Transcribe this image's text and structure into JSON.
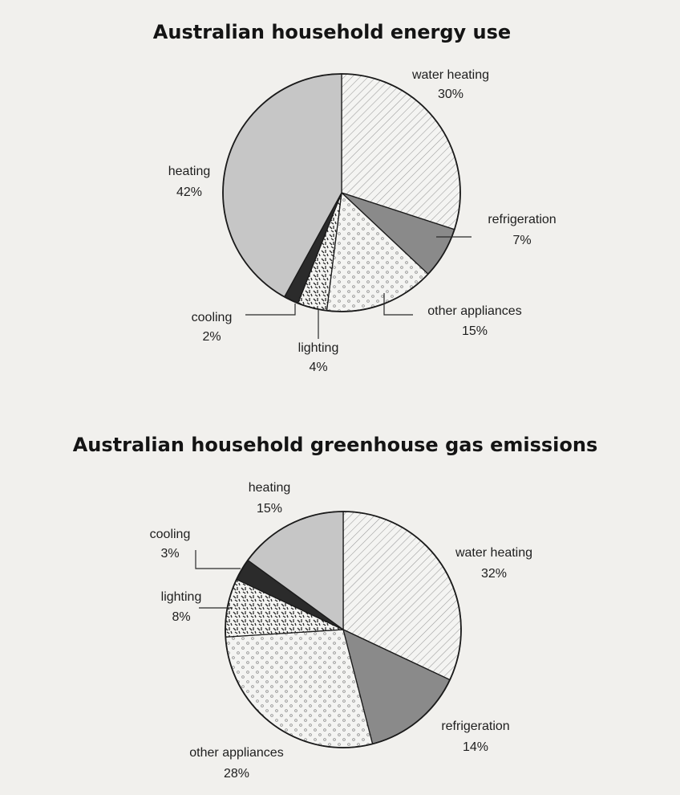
{
  "chart_data": [
    {
      "type": "pie",
      "title": "Australian household energy use",
      "slices": [
        {
          "label": "water heating",
          "value": 30,
          "value_label": "30%",
          "pattern": "hatch"
        },
        {
          "label": "refrigeration",
          "value": 7,
          "value_label": "7%",
          "pattern": "dark-grey"
        },
        {
          "label": "other appliances",
          "value": 15,
          "value_label": "15%",
          "pattern": "dots"
        },
        {
          "label": "lighting",
          "value": 4,
          "value_label": "4%",
          "pattern": "dashes"
        },
        {
          "label": "cooling",
          "value": 2,
          "value_label": "2%",
          "pattern": "black"
        },
        {
          "label": "heating",
          "value": 42,
          "value_label": "42%",
          "pattern": "light-grey"
        }
      ]
    },
    {
      "type": "pie",
      "title": "Australian household greenhouse gas emissions",
      "slices": [
        {
          "label": "water heating",
          "value": 32,
          "value_label": "32%",
          "pattern": "hatch"
        },
        {
          "label": "refrigeration",
          "value": 14,
          "value_label": "14%",
          "pattern": "dark-grey"
        },
        {
          "label": "other appliances",
          "value": 28,
          "value_label": "28%",
          "pattern": "dots"
        },
        {
          "label": "lighting",
          "value": 8,
          "value_label": "8%",
          "pattern": "dashes"
        },
        {
          "label": "cooling",
          "value": 3,
          "value_label": "3%",
          "pattern": "black"
        },
        {
          "label": "heating",
          "value": 15,
          "value_label": "15%",
          "pattern": "light-grey"
        }
      ]
    }
  ],
  "colors": {
    "background": "#f1f0ed",
    "light_grey": "#c6c6c6",
    "dark_grey": "#8a8a8a",
    "black": "#2b2b2b",
    "ink": "#1a1a1a"
  }
}
